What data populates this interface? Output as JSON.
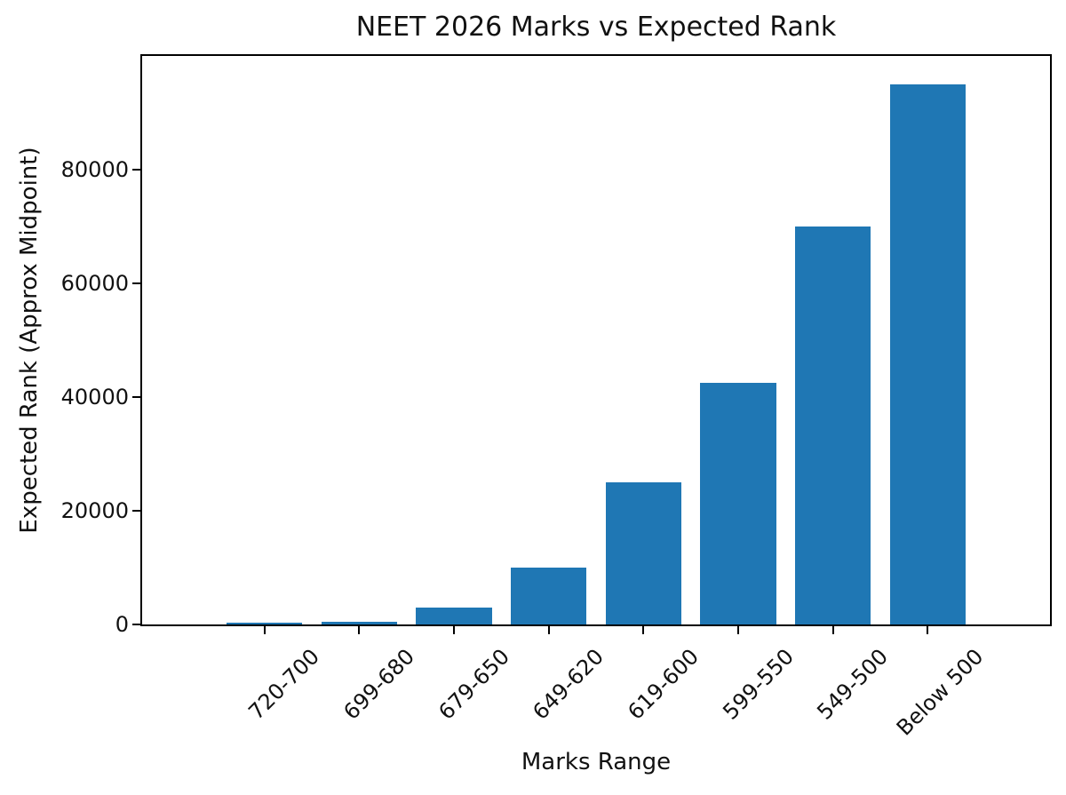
{
  "chart_data": {
    "type": "bar",
    "title": "NEET 2026 Marks vs Expected Rank",
    "xlabel": "Marks Range",
    "ylabel": "Expected Rank (Approx Midpoint)",
    "categories": [
      "720-700",
      "699-680",
      "679-650",
      "649-620",
      "619-600",
      "599-550",
      "549-500",
      "Below 500"
    ],
    "values": [
      250,
      500,
      3000,
      10000,
      25000,
      42500,
      70000,
      95000
    ],
    "ylim": [
      0,
      100000
    ],
    "yticks": [
      0,
      20000,
      40000,
      60000,
      80000
    ],
    "ytick_labels": [
      "0",
      "20000",
      "40000",
      "60000",
      "80000"
    ],
    "bar_color": "#1f77b4",
    "axis_color": "#000000",
    "background_color": "#ffffff",
    "grid": false,
    "legend": null,
    "x_tick_rotation_deg": 45
  }
}
